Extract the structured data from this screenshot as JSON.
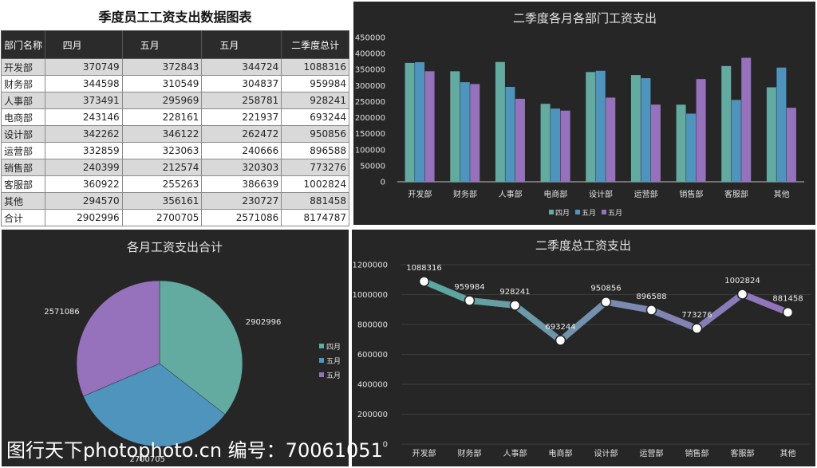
{
  "table": {
    "title": "季度员工工资支出数据图表",
    "headers": [
      "部门名称",
      "四月",
      "五月",
      "五月",
      "二季度总计"
    ],
    "rows": [
      [
        "开发部",
        "370749",
        "372843",
        "344724",
        "1088316"
      ],
      [
        "财务部",
        "344598",
        "310549",
        "304837",
        "959984"
      ],
      [
        "人事部",
        "373491",
        "295969",
        "258781",
        "928241"
      ],
      [
        "电商部",
        "243146",
        "228161",
        "221937",
        "693244"
      ],
      [
        "设计部",
        "342262",
        "346122",
        "262472",
        "950856"
      ],
      [
        "运营部",
        "332859",
        "323063",
        "240666",
        "896588"
      ],
      [
        "销售部",
        "240399",
        "212574",
        "320303",
        "773276"
      ],
      [
        "客服部",
        "360922",
        "255263",
        "386639",
        "1002824"
      ],
      [
        "其他",
        "294570",
        "356161",
        "230727",
        "881458"
      ],
      [
        "合计",
        "2902996",
        "2700705",
        "2571086",
        "8174787"
      ]
    ]
  },
  "chart_data": [
    {
      "type": "bar",
      "title": "二季度各月各部门工资支出",
      "categories": [
        "开发部",
        "财务部",
        "人事部",
        "电商部",
        "设计部",
        "运营部",
        "销售部",
        "客服部",
        "其他"
      ],
      "series": [
        {
          "name": "四月",
          "color": "#63aba1",
          "values": [
            370749,
            344598,
            373491,
            243146,
            342262,
            332859,
            240399,
            360922,
            294570
          ]
        },
        {
          "name": "五月",
          "color": "#4f94bd",
          "values": [
            372843,
            310549,
            295969,
            228161,
            346122,
            323063,
            212574,
            255263,
            356161
          ]
        },
        {
          "name": "五月",
          "color": "#9672bd",
          "values": [
            344724,
            304837,
            258781,
            221937,
            262472,
            240666,
            320303,
            386639,
            230727
          ]
        }
      ],
      "ylim": [
        0,
        450000
      ],
      "yticks": [
        "0",
        "50000",
        "100000",
        "150000",
        "200000",
        "250000",
        "300000",
        "350000",
        "400000",
        "450000"
      ],
      "legend": "bottom"
    },
    {
      "type": "pie",
      "title": "各月工资支出合计",
      "labels": [
        "四月",
        "五月",
        "五月"
      ],
      "values": [
        2902996,
        2700705,
        2571086
      ],
      "value_labels": [
        "2902996",
        "2700705",
        "2571086"
      ],
      "colors": [
        "#63aba1",
        "#4f94bd",
        "#9672bd"
      ],
      "legend": "right"
    },
    {
      "type": "line",
      "title": "二季度总工资支出",
      "categories": [
        "开发部",
        "财务部",
        "人事部",
        "电商部",
        "设计部",
        "运营部",
        "销售部",
        "客服部",
        "其他"
      ],
      "values": [
        1088316,
        959984,
        928241,
        693244,
        950856,
        896588,
        773276,
        1002824,
        881458
      ],
      "value_labels": [
        "1088316",
        "959984",
        "928241",
        "693244",
        "950856",
        "896588",
        "773276",
        "1002824",
        "881458"
      ],
      "ylim": [
        0,
        1200000
      ],
      "yticks": [
        "0",
        "200000",
        "400000",
        "600000",
        "800000",
        "1000000",
        "1200000"
      ],
      "gradient": [
        "#5aaaa0",
        "#9472bd"
      ]
    }
  ],
  "watermark": "图行天下photophoto.cn 编号：70061051"
}
